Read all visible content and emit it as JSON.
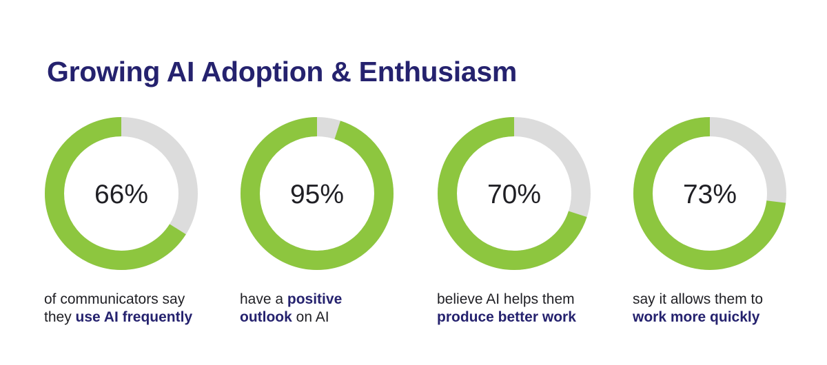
{
  "title": "Growing AI Adoption & Enthusiasm",
  "colors": {
    "title": "#25226e",
    "ring_fill": "#8dc63f",
    "ring_track": "#dcdcdc",
    "text": "#1f1f24",
    "emphasis": "#25226e"
  },
  "chart_data": {
    "type": "donut",
    "title": "Growing AI Adoption & Enthusiasm",
    "unit": "%",
    "items": [
      {
        "value": 66,
        "label": "66%",
        "caption": [
          [
            {
              "text": "of communicators say",
              "bold": false
            }
          ],
          [
            {
              "text": "they ",
              "bold": false
            },
            {
              "text": "use AI frequently",
              "bold": true
            }
          ]
        ]
      },
      {
        "value": 95,
        "label": "95%",
        "caption": [
          [
            {
              "text": "have a ",
              "bold": false
            },
            {
              "text": "positive",
              "bold": true
            }
          ],
          [
            {
              "text": "outlook",
              "bold": true
            },
            {
              "text": " on AI",
              "bold": false
            }
          ]
        ]
      },
      {
        "value": 70,
        "label": "70%",
        "caption": [
          [
            {
              "text": "believe AI helps them",
              "bold": false
            }
          ],
          [
            {
              "text": "produce better work",
              "bold": true
            }
          ]
        ]
      },
      {
        "value": 73,
        "label": "73%",
        "caption": [
          [
            {
              "text": "say it allows them to",
              "bold": false
            }
          ],
          [
            {
              "text": "work more quickly",
              "bold": true
            }
          ]
        ]
      }
    ]
  }
}
